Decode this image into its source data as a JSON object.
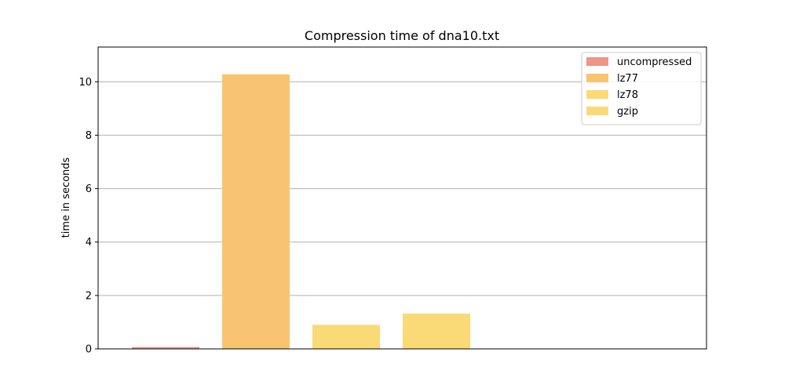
{
  "chart_data": {
    "type": "bar",
    "title": "Compression time of dna10.txt",
    "xlabel": "",
    "ylabel": "time in seconds",
    "ylim": [
      0,
      11.3
    ],
    "yticks": [
      0,
      2,
      4,
      6,
      8,
      10
    ],
    "grid": "horizontal",
    "legend_position": "top-right",
    "series": [
      {
        "name": "uncompressed",
        "value": 0.07,
        "color": "#f1948a"
      },
      {
        "name": "lz77",
        "value": 10.28,
        "color": "#f8c471"
      },
      {
        "name": "lz78",
        "value": 0.9,
        "color": "#fad977"
      },
      {
        "name": "gzip",
        "value": 1.32,
        "color": "#fad977"
      }
    ]
  }
}
